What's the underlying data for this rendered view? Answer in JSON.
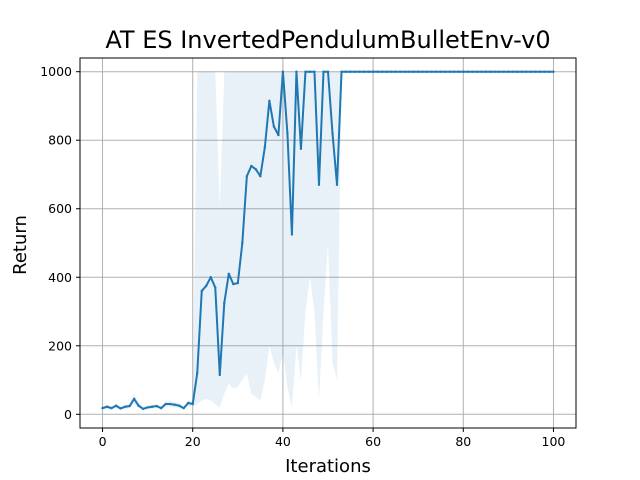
{
  "chart_data": {
    "type": "line",
    "title": "AT ES InvertedPendulumBulletEnv-v0",
    "xlabel": "Iterations",
    "ylabel": "Return",
    "xlim": [
      -5,
      105
    ],
    "ylim": [
      -40,
      1040
    ],
    "xticks": [
      0,
      20,
      40,
      60,
      80,
      100
    ],
    "yticks": [
      0,
      200,
      400,
      600,
      800,
      1000
    ],
    "grid": true,
    "colors": {
      "line": "#1f77b4",
      "band": "#1f77b4"
    },
    "series": [
      {
        "x": [
          0,
          1,
          2,
          3,
          4,
          5,
          6,
          7,
          8,
          9,
          10,
          11,
          12,
          13,
          14,
          15,
          16,
          17,
          18,
          19,
          20,
          21,
          22,
          23,
          24,
          25,
          26,
          27,
          28,
          29,
          30,
          31,
          32,
          33,
          34,
          35,
          36,
          37,
          38,
          39,
          40,
          41,
          42,
          43,
          44,
          45,
          46,
          47,
          48,
          49,
          50,
          51,
          52,
          53,
          54,
          55,
          56,
          57,
          58,
          59,
          60,
          61,
          62,
          63,
          64,
          65,
          66,
          67,
          68,
          69,
          70,
          71,
          72,
          73,
          74,
          75,
          76,
          77,
          78,
          79,
          80,
          81,
          82,
          83,
          84,
          85,
          86,
          87,
          88,
          89,
          90,
          91,
          92,
          93,
          94,
          95,
          96,
          97,
          98,
          99,
          100
        ],
        "y": [
          18,
          22,
          18,
          25,
          17,
          22,
          24,
          45,
          25,
          16,
          20,
          22,
          24,
          18,
          30,
          30,
          28,
          25,
          18,
          33,
          30,
          120,
          360,
          375,
          400,
          370,
          115,
          325,
          410,
          380,
          383,
          500,
          695,
          725,
          715,
          695,
          780,
          915,
          840,
          815,
          1000,
          820,
          525,
          1000,
          775,
          1000,
          1000,
          1000,
          670,
          1000,
          1000,
          820,
          670,
          1000,
          1000,
          1000,
          1000,
          1000,
          1000,
          1000,
          1000,
          1000,
          1000,
          1000,
          1000,
          1000,
          1000,
          1000,
          1000,
          1000,
          1000,
          1000,
          1000,
          1000,
          1000,
          1000,
          1000,
          1000,
          1000,
          1000,
          1000,
          1000,
          1000,
          1000,
          1000,
          1000,
          1000,
          1000,
          1000,
          1000,
          1000,
          1000,
          1000,
          1000,
          1000,
          1000,
          1000,
          1000,
          1000,
          1000,
          1000
        ],
        "band_low": [
          14,
          16,
          14,
          18,
          13,
          16,
          18,
          30,
          18,
          12,
          14,
          16,
          18,
          14,
          22,
          22,
          20,
          18,
          14,
          24,
          22,
          30,
          40,
          45,
          40,
          30,
          20,
          60,
          90,
          75,
          80,
          100,
          120,
          60,
          50,
          40,
          100,
          200,
          150,
          120,
          180,
          80,
          20,
          200,
          100,
          300,
          400,
          300,
          40,
          300,
          500,
          150,
          100,
          1000,
          1000,
          1000,
          1000,
          1000,
          1000,
          1000,
          1000,
          1000,
          1000,
          1000,
          1000,
          1000,
          1000,
          1000,
          1000,
          1000,
          1000,
          1000,
          1000,
          1000,
          1000,
          1000,
          1000,
          1000,
          1000,
          1000,
          1000,
          1000,
          1000,
          1000,
          1000,
          1000,
          1000,
          1000,
          1000,
          1000,
          1000,
          1000,
          1000,
          1000,
          1000,
          1000,
          1000,
          1000,
          1000,
          1000,
          1000
        ],
        "band_high": [
          22,
          28,
          22,
          32,
          21,
          28,
          30,
          60,
          32,
          20,
          26,
          28,
          30,
          22,
          38,
          38,
          36,
          32,
          22,
          42,
          38,
          1000,
          1000,
          1000,
          1000,
          1000,
          600,
          1000,
          1000,
          1000,
          1000,
          1000,
          1000,
          1000,
          1000,
          1000,
          1000,
          1000,
          1000,
          1000,
          1000,
          1000,
          1000,
          1000,
          1000,
          1000,
          1000,
          1000,
          1000,
          1000,
          1000,
          1000,
          1000,
          1000,
          1000,
          1000,
          1000,
          1000,
          1000,
          1000,
          1000,
          1000,
          1000,
          1000,
          1000,
          1000,
          1000,
          1000,
          1000,
          1000,
          1000,
          1000,
          1000,
          1000,
          1000,
          1000,
          1000,
          1000,
          1000,
          1000,
          1000,
          1000,
          1000,
          1000,
          1000,
          1000,
          1000,
          1000,
          1000,
          1000,
          1000,
          1000,
          1000,
          1000,
          1000,
          1000,
          1000,
          1000,
          1000,
          1000,
          1000
        ]
      }
    ]
  }
}
